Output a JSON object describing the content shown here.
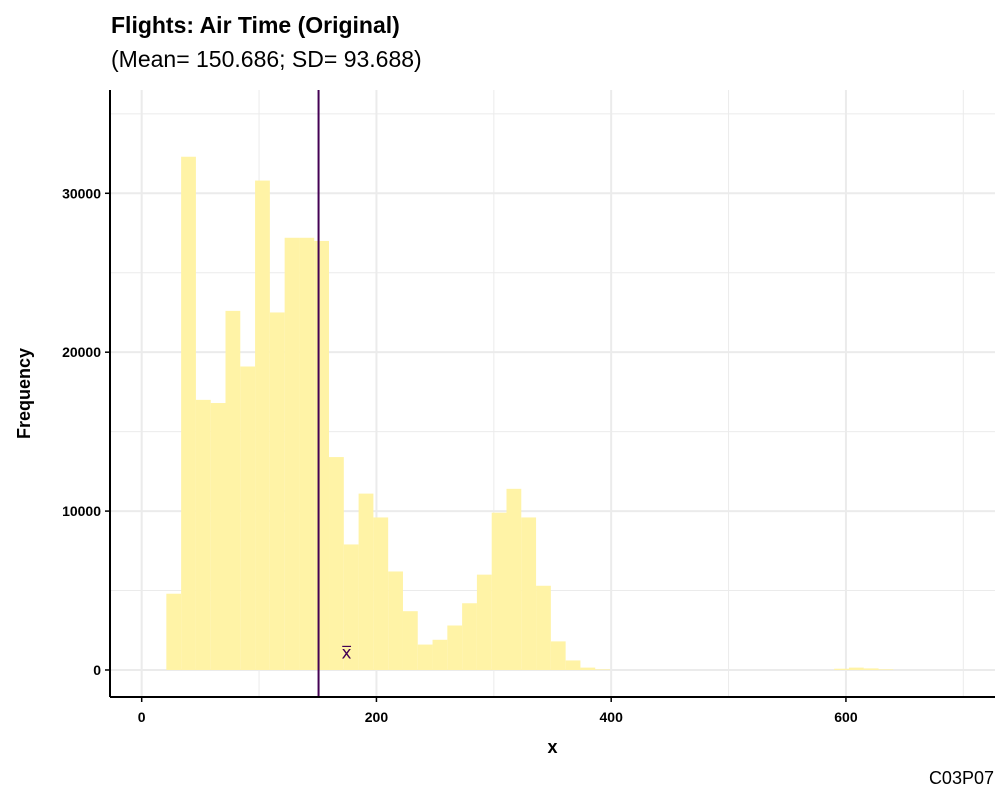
{
  "title": "Flights: Air Time (Original)",
  "subtitle": "(Mean= 150.686; SD= 93.688)",
  "caption": "C03P07",
  "chart_data": {
    "type": "bar",
    "subtype": "histogram",
    "xlabel": "x",
    "ylabel": "Frequency",
    "xlim": [
      -27,
      727
    ],
    "ylim": [
      -1700,
      36500
    ],
    "x_ticks": [
      0,
      200,
      400,
      600
    ],
    "y_ticks": [
      0,
      10000,
      20000,
      30000
    ],
    "grid": true,
    "bin_width": 12.6,
    "bins": [
      {
        "x0": 21,
        "x1": 33.6,
        "count": 4800
      },
      {
        "x0": 33.6,
        "x1": 46.2,
        "count": 32300
      },
      {
        "x0": 46.2,
        "x1": 58.8,
        "count": 17000
      },
      {
        "x0": 58.8,
        "x1": 71.4,
        "count": 16800
      },
      {
        "x0": 71.4,
        "x1": 84,
        "count": 22600
      },
      {
        "x0": 84,
        "x1": 96.6,
        "count": 19100
      },
      {
        "x0": 96.6,
        "x1": 109.2,
        "count": 30800
      },
      {
        "x0": 109.2,
        "x1": 121.8,
        "count": 22500
      },
      {
        "x0": 121.8,
        "x1": 134.4,
        "count": 27200
      },
      {
        "x0": 134.4,
        "x1": 147,
        "count": 27200
      },
      {
        "x0": 147,
        "x1": 159.6,
        "count": 27000
      },
      {
        "x0": 159.6,
        "x1": 172.2,
        "count": 13400
      },
      {
        "x0": 172.2,
        "x1": 184.8,
        "count": 7900
      },
      {
        "x0": 184.8,
        "x1": 197.4,
        "count": 11100
      },
      {
        "x0": 197.4,
        "x1": 210,
        "count": 9600
      },
      {
        "x0": 210,
        "x1": 222.6,
        "count": 6200
      },
      {
        "x0": 222.6,
        "x1": 235.2,
        "count": 3700
      },
      {
        "x0": 235.2,
        "x1": 247.8,
        "count": 1600
      },
      {
        "x0": 247.8,
        "x1": 260.4,
        "count": 1900
      },
      {
        "x0": 260.4,
        "x1": 273,
        "count": 2800
      },
      {
        "x0": 273,
        "x1": 285.6,
        "count": 4200
      },
      {
        "x0": 285.6,
        "x1": 298.2,
        "count": 6000
      },
      {
        "x0": 298.2,
        "x1": 310.8,
        "count": 9900
      },
      {
        "x0": 310.8,
        "x1": 323.4,
        "count": 11400
      },
      {
        "x0": 323.4,
        "x1": 336,
        "count": 9600
      },
      {
        "x0": 336,
        "x1": 348.6,
        "count": 5300
      },
      {
        "x0": 348.6,
        "x1": 361.2,
        "count": 1800
      },
      {
        "x0": 361.2,
        "x1": 373.8,
        "count": 600
      },
      {
        "x0": 373.8,
        "x1": 386.4,
        "count": 150
      },
      {
        "x0": 386.4,
        "x1": 399,
        "count": 40
      },
      {
        "x0": 590,
        "x1": 602.6,
        "count": 80
      },
      {
        "x0": 602.6,
        "x1": 615.2,
        "count": 150
      },
      {
        "x0": 615.2,
        "x1": 627.8,
        "count": 100
      },
      {
        "x0": 627.8,
        "x1": 640.4,
        "count": 40
      }
    ],
    "mean": 150.686,
    "mean_label": "x̅",
    "mean_label_y": 1100,
    "bar_color": "#FFF3A6",
    "mean_line_color": "#440154",
    "grid_color": "#EBEBEB"
  }
}
